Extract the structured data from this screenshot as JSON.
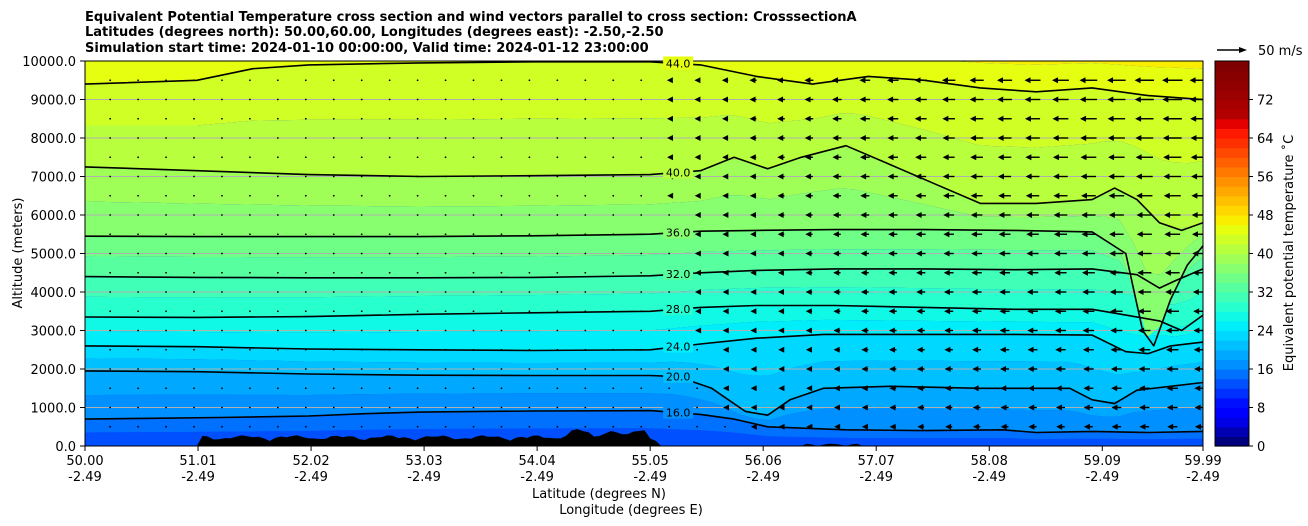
{
  "chart_data": {
    "type": "heatmap",
    "title_lines": [
      "Equivalent Potential Temperature cross section and wind vectors parallel to cross section: CrosssectionA",
      "Latitudes (degrees north): 50.00,60.00, Longitudes (degrees east): -2.50,-2.50",
      "Simulation start time: 2024-01-10 00:00:00, Valid time: 2024-01-12 23:00:00"
    ],
    "xlabel_lines": [
      "Latitude (degrees N)",
      "Longitude (degrees E)"
    ],
    "ylabel": "Altitude (meters)",
    "colorbar_label": "Equivalent potential temperature ˚C",
    "wind_key_label": "50 m/s",
    "xlim": [
      50.0,
      59.99
    ],
    "ylim": [
      0,
      10000
    ],
    "x_ticks": [
      {
        "lat": "50.00",
        "lon": "-2.49",
        "v": 50.0
      },
      {
        "lat": "51.01",
        "lon": "-2.49",
        "v": 51.01
      },
      {
        "lat": "52.02",
        "lon": "-2.49",
        "v": 52.02
      },
      {
        "lat": "53.03",
        "lon": "-2.49",
        "v": 53.03
      },
      {
        "lat": "54.04",
        "lon": "-2.49",
        "v": 54.04
      },
      {
        "lat": "55.05",
        "lon": "-2.49",
        "v": 55.05
      },
      {
        "lat": "56.06",
        "lon": "-2.49",
        "v": 56.06
      },
      {
        "lat": "57.07",
        "lon": "-2.49",
        "v": 57.07
      },
      {
        "lat": "58.08",
        "lon": "-2.49",
        "v": 58.08
      },
      {
        "lat": "59.09",
        "lon": "-2.49",
        "v": 59.09
      },
      {
        "lat": "59.99",
        "lon": "-2.49",
        "v": 59.99
      }
    ],
    "y_ticks": [
      {
        "label": "0.0",
        "v": 0
      },
      {
        "label": "1000.0",
        "v": 1000
      },
      {
        "label": "2000.0",
        "v": 2000
      },
      {
        "label": "3000.0",
        "v": 3000
      },
      {
        "label": "4000.0",
        "v": 4000
      },
      {
        "label": "5000.0",
        "v": 5000
      },
      {
        "label": "6000.0",
        "v": 6000
      },
      {
        "label": "7000.0",
        "v": 7000
      },
      {
        "label": "8000.0",
        "v": 8000
      },
      {
        "label": "9000.0",
        "v": 9000
      },
      {
        "label": "10000.0",
        "v": 10000
      }
    ],
    "grid": "horizontal",
    "colorbar": {
      "min": 0,
      "max": 80,
      "step": 2,
      "tick_labels": [
        "0",
        "8",
        "16",
        "24",
        "32",
        "40",
        "48",
        "56",
        "64",
        "72"
      ],
      "tick_values": [
        0,
        8,
        16,
        24,
        32,
        40,
        48,
        56,
        64,
        72
      ],
      "colors": [
        "#00007f",
        "#0000b2",
        "#0000e5",
        "#0000ff",
        "#0010ff",
        "#0030ff",
        "#0050ff",
        "#0070ff",
        "#0090ff",
        "#00a8ff",
        "#00c0ff",
        "#00d8ff",
        "#00eefa",
        "#10f8e6",
        "#28ffce",
        "#40ffb6",
        "#58ff9e",
        "#70ff86",
        "#88ff6e",
        "#a0ff56",
        "#b8ff3e",
        "#d0ff26",
        "#e6ff10",
        "#faee00",
        "#ffd800",
        "#ffc000",
        "#ffa800",
        "#ff9000",
        "#ff7800",
        "#ff6000",
        "#ff4800",
        "#ff3000",
        "#ff1800",
        "#e50000",
        "#b20000",
        "#a80000",
        "#9c0000",
        "#900000",
        "#880000",
        "#7f0000"
      ]
    },
    "contours": [
      {
        "label": "16.0",
        "points": [
          [
            50.0,
            700
          ],
          [
            50.6,
            720
          ],
          [
            51.2,
            740
          ],
          [
            52.0,
            780
          ],
          [
            52.5,
            840
          ],
          [
            53.0,
            880
          ],
          [
            54.0,
            910
          ],
          [
            55.05,
            920
          ],
          [
            55.5,
            820
          ],
          [
            55.8,
            700
          ],
          [
            56.1,
            500
          ],
          [
            56.8,
            420
          ],
          [
            57.5,
            400
          ],
          [
            58.2,
            420
          ],
          [
            58.5,
            350
          ],
          [
            59.0,
            380
          ],
          [
            59.5,
            350
          ],
          [
            59.99,
            380
          ]
        ]
      },
      {
        "label": "20.0",
        "points": [
          [
            50.0,
            1950
          ],
          [
            51.0,
            1930
          ],
          [
            52.0,
            1870
          ],
          [
            53.0,
            1840
          ],
          [
            54.0,
            1830
          ],
          [
            55.05,
            1830
          ],
          [
            55.3,
            1800
          ],
          [
            55.6,
            1500
          ],
          [
            55.9,
            900
          ],
          [
            56.1,
            800
          ],
          [
            56.3,
            1200
          ],
          [
            56.6,
            1500
          ],
          [
            57.2,
            1550
          ],
          [
            58.0,
            1500
          ],
          [
            58.8,
            1500
          ],
          [
            59.0,
            1200
          ],
          [
            59.2,
            1100
          ],
          [
            59.4,
            1450
          ],
          [
            59.7,
            1550
          ],
          [
            59.99,
            1650
          ]
        ]
      },
      {
        "label": "24.0",
        "points": [
          [
            50.0,
            2600
          ],
          [
            51.0,
            2580
          ],
          [
            52.0,
            2520
          ],
          [
            53.0,
            2500
          ],
          [
            54.0,
            2480
          ],
          [
            55.05,
            2500
          ],
          [
            55.5,
            2650
          ],
          [
            56.0,
            2800
          ],
          [
            56.6,
            2900
          ],
          [
            57.5,
            2900
          ],
          [
            58.3,
            2900
          ],
          [
            59.0,
            2880
          ],
          [
            59.3,
            2450
          ],
          [
            59.5,
            2400
          ],
          [
            59.7,
            2600
          ],
          [
            59.99,
            2700
          ]
        ]
      },
      {
        "label": "28.0",
        "points": [
          [
            50.0,
            3350
          ],
          [
            51.0,
            3340
          ],
          [
            52.0,
            3360
          ],
          [
            53.0,
            3420
          ],
          [
            54.0,
            3460
          ],
          [
            55.05,
            3500
          ],
          [
            55.5,
            3600
          ],
          [
            56.0,
            3650
          ],
          [
            56.7,
            3650
          ],
          [
            57.5,
            3600
          ],
          [
            58.3,
            3550
          ],
          [
            59.0,
            3550
          ],
          [
            59.6,
            3250
          ],
          [
            59.8,
            3000
          ],
          [
            59.99,
            3400
          ]
        ]
      },
      {
        "label": "32.0",
        "points": [
          [
            50.0,
            4400
          ],
          [
            51.0,
            4380
          ],
          [
            52.0,
            4370
          ],
          [
            53.0,
            4370
          ],
          [
            54.0,
            4380
          ],
          [
            55.05,
            4420
          ],
          [
            55.5,
            4500
          ],
          [
            56.0,
            4560
          ],
          [
            56.7,
            4600
          ],
          [
            57.5,
            4600
          ],
          [
            58.3,
            4580
          ],
          [
            59.0,
            4600
          ],
          [
            59.4,
            4450
          ],
          [
            59.6,
            4100
          ],
          [
            59.75,
            4300
          ],
          [
            59.99,
            4600
          ]
        ]
      },
      {
        "label": "36.0",
        "points": [
          [
            50.0,
            5450
          ],
          [
            51.0,
            5440
          ],
          [
            52.0,
            5440
          ],
          [
            53.0,
            5440
          ],
          [
            54.0,
            5460
          ],
          [
            55.05,
            5500
          ],
          [
            55.5,
            5580
          ],
          [
            56.0,
            5600
          ],
          [
            56.7,
            5620
          ],
          [
            57.5,
            5620
          ],
          [
            58.3,
            5600
          ],
          [
            59.0,
            5560
          ],
          [
            59.3,
            5000
          ],
          [
            59.45,
            3000
          ],
          [
            59.55,
            2600
          ],
          [
            59.7,
            3800
          ],
          [
            59.85,
            4700
          ],
          [
            59.99,
            5200
          ]
        ]
      },
      {
        "label": "40.0",
        "points": [
          [
            50.0,
            7250
          ],
          [
            51.0,
            7150
          ],
          [
            52.0,
            7050
          ],
          [
            53.0,
            7000
          ],
          [
            54.0,
            7020
          ],
          [
            55.05,
            7050
          ],
          [
            55.5,
            7150
          ],
          [
            55.8,
            7500
          ],
          [
            56.1,
            7200
          ],
          [
            56.4,
            7500
          ],
          [
            56.8,
            7800
          ],
          [
            57.2,
            7300
          ],
          [
            57.6,
            6800
          ],
          [
            58.0,
            6300
          ],
          [
            58.5,
            6300
          ],
          [
            59.0,
            6400
          ],
          [
            59.2,
            6700
          ],
          [
            59.4,
            6400
          ],
          [
            59.6,
            5800
          ],
          [
            59.8,
            5600
          ],
          [
            59.99,
            5800
          ]
        ]
      },
      {
        "label": "44.0",
        "points": [
          [
            50.0,
            9400
          ],
          [
            51.0,
            9500
          ],
          [
            51.5,
            9800
          ],
          [
            52.0,
            9900
          ],
          [
            53.0,
            9950
          ],
          [
            54.0,
            9980
          ],
          [
            55.05,
            9980
          ],
          [
            55.5,
            9900
          ],
          [
            56.0,
            9600
          ],
          [
            56.5,
            9400
          ],
          [
            57.0,
            9600
          ],
          [
            57.5,
            9500
          ],
          [
            58.0,
            9300
          ],
          [
            58.5,
            9200
          ],
          [
            59.0,
            9300
          ],
          [
            59.5,
            9100
          ],
          [
            59.99,
            9000
          ]
        ]
      }
    ]
  }
}
